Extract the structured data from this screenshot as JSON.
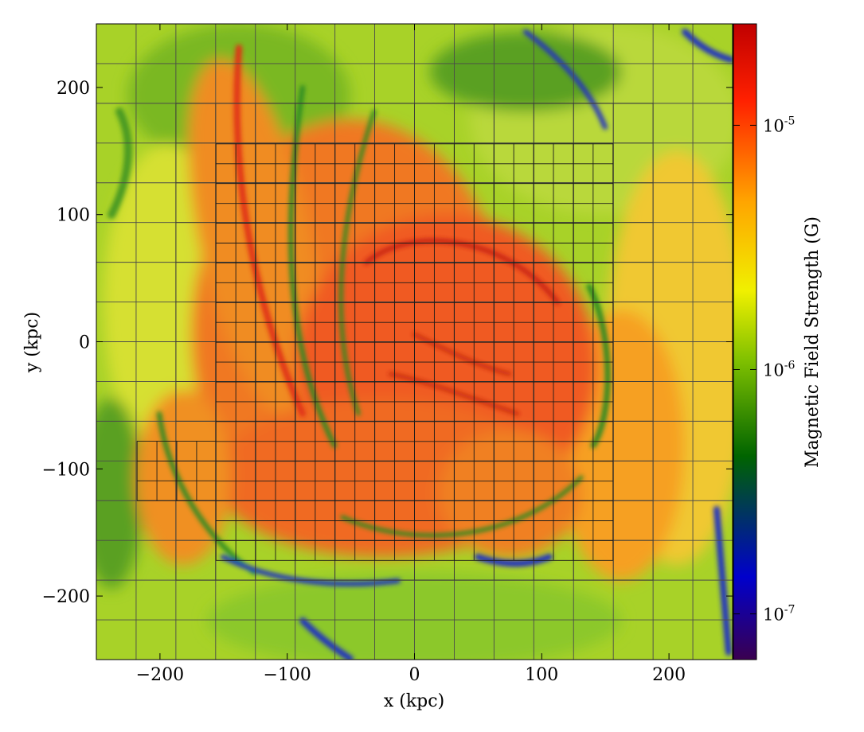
{
  "chart_data": {
    "type": "heatmap",
    "title": "",
    "xlabel": "x  (kpc)",
    "ylabel": "y  (kpc)",
    "xlim": [
      -250,
      250
    ],
    "ylim": [
      -250,
      250
    ],
    "xticks": [
      -200,
      -100,
      0,
      100,
      200
    ],
    "yticks": [
      -200,
      -100,
      0,
      100,
      200
    ],
    "xtick_labels": [
      "−200",
      "−100",
      "0",
      "100",
      "200"
    ],
    "ytick_labels": [
      "−200",
      "−100",
      "0",
      "100",
      "200"
    ],
    "colorbar": {
      "label": "Magnetic Field Strength  (G)",
      "scale": "log",
      "range": [
        6.5e-08,
        2.6e-05
      ],
      "ticks": [
        1e-07,
        1e-06,
        1e-05
      ],
      "tick_labels": [
        {
          "base": "10",
          "exp": "-7"
        },
        {
          "base": "10",
          "exp": "-6"
        },
        {
          "base": "10",
          "exp": "-5"
        }
      ],
      "colors": [
        "#3a0050",
        "#0000cc",
        "#006400",
        "#7fc000",
        "#f0f000",
        "#ffa500",
        "#ff2000",
        "#c00000"
      ]
    },
    "grid_overlay": true,
    "colors": {
      "background_field": "#a8d228",
      "hot_core": "#f06020"
    }
  }
}
